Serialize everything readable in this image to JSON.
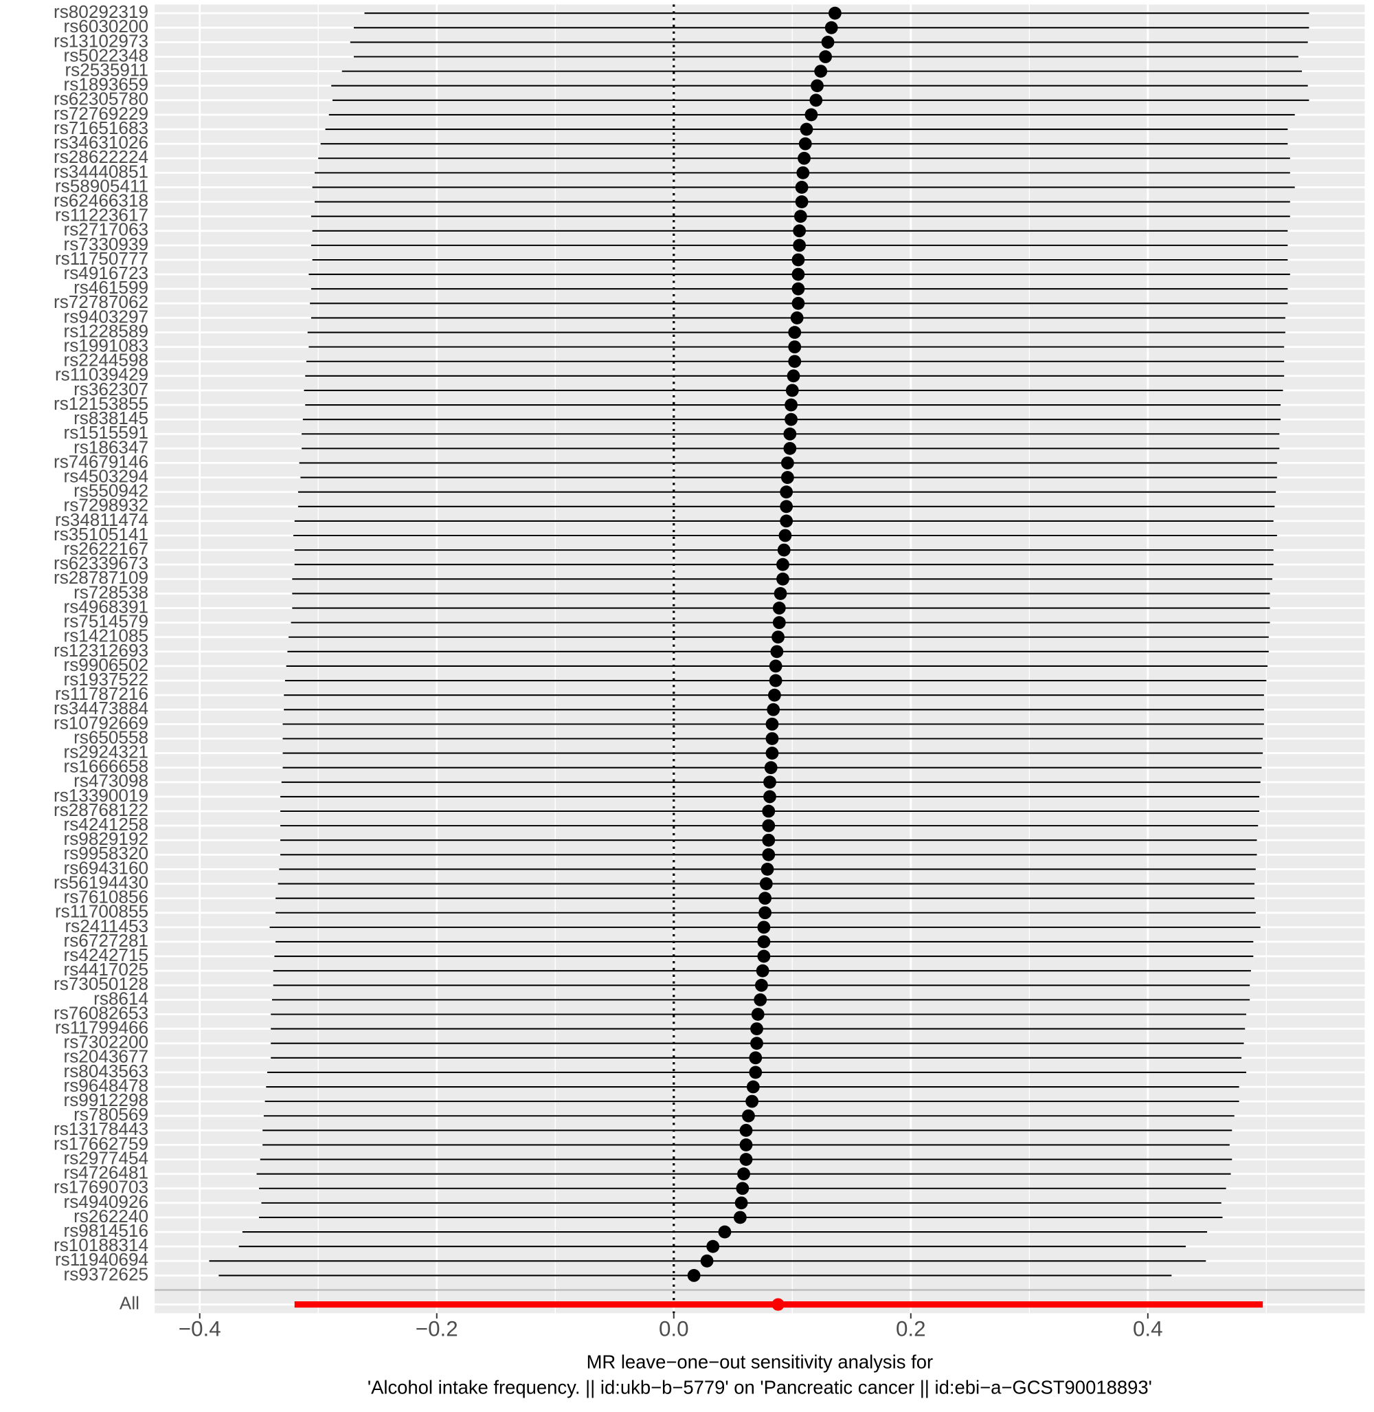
{
  "chart_data": {
    "type": "forest",
    "xlabel": [
      "MR leave−one−out sensitivity analysis for",
      "'Alcohol intake frequency. || id:ukb−b−5779' on 'Pancreatic cancer || id:ebi−a−GCST90018893'"
    ],
    "categories": [
      "rs80292319",
      "rs6030200",
      "rs13102973",
      "rs5022348",
      "rs2535911",
      "rs1893659",
      "rs62305780",
      "rs72769229",
      "rs71651683",
      "rs34631026",
      "rs28622224",
      "rs34440851",
      "rs58905411",
      "rs62466318",
      "rs11223617",
      "rs2717063",
      "rs7330939",
      "rs11750777",
      "rs4916723",
      "rs461599",
      "rs72787062",
      "rs9403297",
      "rs1228589",
      "rs1991083",
      "rs2244598",
      "rs11039429",
      "rs362307",
      "rs12153855",
      "rs838145",
      "rs1515591",
      "rs186347",
      "rs74679146",
      "rs4503294",
      "rs550942",
      "rs7298932",
      "rs34811474",
      "rs35105141",
      "rs2622167",
      "rs62339673",
      "rs28787109",
      "rs728538",
      "rs4968391",
      "rs7514579",
      "rs1421085",
      "rs12312693",
      "rs9906502",
      "rs1937522",
      "rs11787216",
      "rs34473884",
      "rs10792669",
      "rs650558",
      "rs2924321",
      "rs1666658",
      "rs473098",
      "rs13390019",
      "rs28768122",
      "rs4241258",
      "rs9829192",
      "rs9958320",
      "rs6943160",
      "rs56194430",
      "rs7610856",
      "rs11700855",
      "rs2411453",
      "rs6727281",
      "rs4242715",
      "rs4417025",
      "rs73050128",
      "rs8614",
      "rs76082653",
      "rs11799466",
      "rs7302200",
      "rs2043677",
      "rs8043563",
      "rs9648478",
      "rs9912298",
      "rs780569",
      "rs13178443",
      "rs17662759",
      "rs2977454",
      "rs4726481",
      "rs17690703",
      "rs4940926",
      "rs262240",
      "rs9814516",
      "rs10188314",
      "rs11940694",
      "rs9372625"
    ],
    "values": [
      0.136,
      0.133,
      0.13,
      0.128,
      0.124,
      0.121,
      0.12,
      0.116,
      0.112,
      0.111,
      0.11,
      0.109,
      0.108,
      0.108,
      0.107,
      0.106,
      0.106,
      0.105,
      0.105,
      0.105,
      0.105,
      0.104,
      0.102,
      0.102,
      0.102,
      0.101,
      0.1,
      0.099,
      0.099,
      0.098,
      0.098,
      0.096,
      0.096,
      0.095,
      0.095,
      0.095,
      0.094,
      0.093,
      0.092,
      0.092,
      0.09,
      0.089,
      0.089,
      0.088,
      0.087,
      0.086,
      0.086,
      0.085,
      0.084,
      0.083,
      0.083,
      0.083,
      0.082,
      0.081,
      0.081,
      0.08,
      0.08,
      0.08,
      0.08,
      0.079,
      0.078,
      0.077,
      0.077,
      0.076,
      0.076,
      0.076,
      0.075,
      0.074,
      0.073,
      0.071,
      0.07,
      0.07,
      0.069,
      0.069,
      0.067,
      0.066,
      0.063,
      0.061,
      0.061,
      0.061,
      0.059,
      0.058,
      0.057,
      0.056,
      0.043,
      0.033,
      0.028,
      0.017
    ],
    "lower": [
      -0.261,
      -0.27,
      -0.273,
      -0.27,
      -0.28,
      -0.289,
      -0.288,
      -0.291,
      -0.294,
      -0.298,
      -0.3,
      -0.303,
      -0.305,
      -0.303,
      -0.306,
      -0.305,
      -0.306,
      -0.305,
      -0.308,
      -0.306,
      -0.307,
      -0.306,
      -0.309,
      -0.308,
      -0.31,
      -0.311,
      -0.312,
      -0.311,
      -0.313,
      -0.314,
      -0.314,
      -0.316,
      -0.315,
      -0.317,
      -0.317,
      -0.32,
      -0.321,
      -0.32,
      -0.32,
      -0.322,
      -0.322,
      -0.322,
      -0.323,
      -0.325,
      -0.326,
      -0.327,
      -0.328,
      -0.329,
      -0.329,
      -0.33,
      -0.33,
      -0.33,
      -0.33,
      -0.331,
      -0.332,
      -0.332,
      -0.332,
      -0.332,
      -0.332,
      -0.333,
      -0.334,
      -0.336,
      -0.336,
      -0.341,
      -0.336,
      -0.337,
      -0.338,
      -0.338,
      -0.339,
      -0.34,
      -0.34,
      -0.34,
      -0.34,
      -0.343,
      -0.344,
      -0.345,
      -0.346,
      -0.347,
      -0.347,
      -0.349,
      -0.352,
      -0.35,
      -0.348,
      -0.35,
      -0.364,
      -0.367,
      -0.392,
      -0.384
    ],
    "upper": [
      0.536,
      0.536,
      0.535,
      0.527,
      0.53,
      0.535,
      0.536,
      0.524,
      0.518,
      0.518,
      0.52,
      0.52,
      0.524,
      0.52,
      0.52,
      0.518,
      0.518,
      0.518,
      0.52,
      0.518,
      0.518,
      0.516,
      0.516,
      0.515,
      0.515,
      0.515,
      0.514,
      0.512,
      0.512,
      0.511,
      0.511,
      0.509,
      0.509,
      0.508,
      0.507,
      0.506,
      0.509,
      0.506,
      0.506,
      0.505,
      0.503,
      0.503,
      0.503,
      0.502,
      0.502,
      0.501,
      0.5,
      0.498,
      0.498,
      0.498,
      0.497,
      0.497,
      0.496,
      0.495,
      0.494,
      0.494,
      0.493,
      0.492,
      0.492,
      0.491,
      0.49,
      0.49,
      0.491,
      0.495,
      0.489,
      0.489,
      0.487,
      0.486,
      0.486,
      0.483,
      0.482,
      0.481,
      0.479,
      0.483,
      0.477,
      0.477,
      0.473,
      0.471,
      0.469,
      0.471,
      0.47,
      0.466,
      0.462,
      0.463,
      0.45,
      0.432,
      0.449,
      0.42
    ],
    "color": "#000000",
    "overall": {
      "label": "All",
      "value": 0.088,
      "lower": -0.32,
      "upper": 0.497,
      "color": "#ff0000"
    },
    "reference_line": 0,
    "xlim": [
      -0.438,
      0.583
    ],
    "xticks": [
      {
        "value": -0.4,
        "label": "−0.4"
      },
      {
        "value": -0.2,
        "label": "−0.2"
      },
      {
        "value": 0,
        "label": "0.0"
      },
      0.2,
      0.4
    ],
    "grid": true
  }
}
